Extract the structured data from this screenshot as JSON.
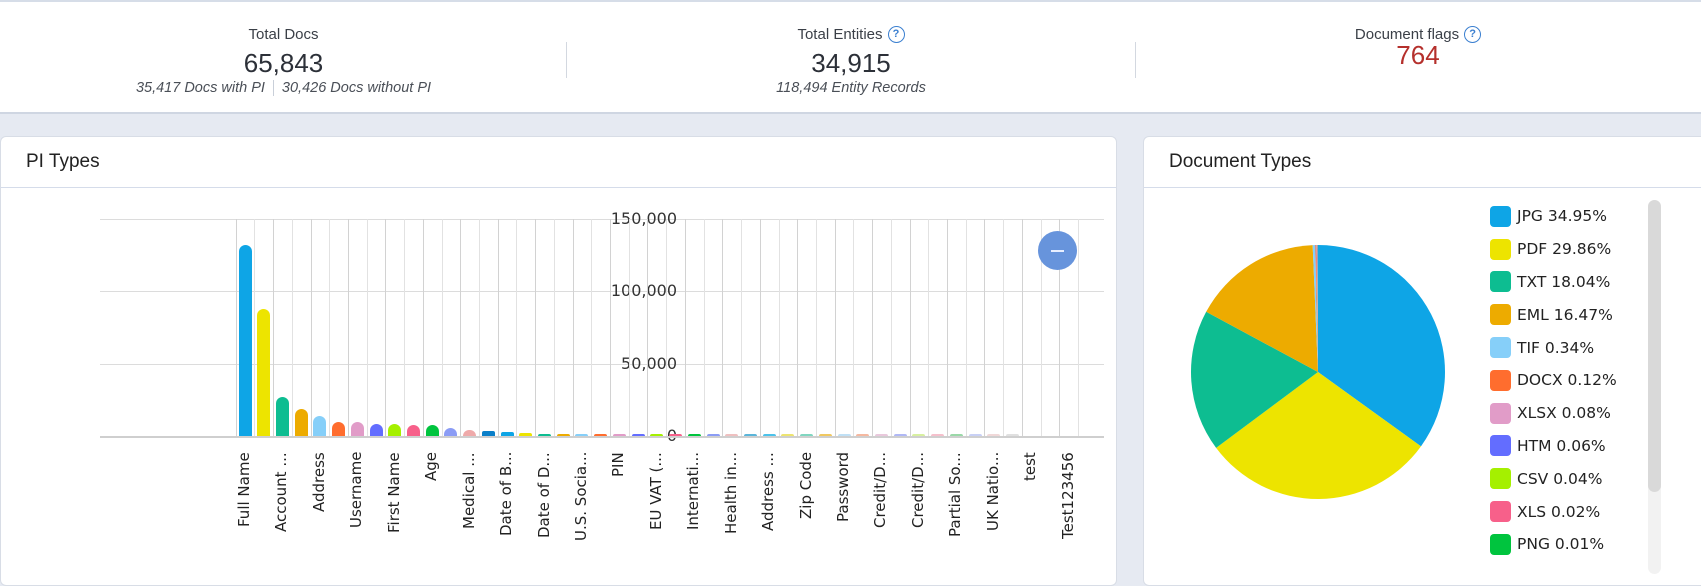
{
  "stats": {
    "total_docs": {
      "label": "Total Docs",
      "value": "65,843",
      "with_pi": "35,417 Docs with PI",
      "without_pi": "30,426 Docs without PI"
    },
    "total_entities": {
      "label": "Total Entities",
      "value": "34,915",
      "sub": "118,494 Entity Records",
      "help_icon": "?"
    },
    "document_flags": {
      "label": "Document flags",
      "value": "764",
      "help_icon": "?",
      "value_color": "#b5302c"
    }
  },
  "pi_types": {
    "title": "PI Types",
    "y_ticks": [
      "150,000",
      "100,000",
      "50,000",
      "0"
    ]
  },
  "document_types": {
    "title": "Document Types"
  },
  "chart_data": [
    {
      "type": "bar",
      "title": "PI Types",
      "xlabel": "",
      "ylabel": "",
      "ylim": [
        0,
        150000
      ],
      "grid": true,
      "categories": [
        "Full Name",
        "(unlabeled 2)",
        "Account ...",
        "(unlabeled 4)",
        "Address",
        "(unlabeled 6)",
        "Username",
        "(unlabeled 8)",
        "First Name",
        "(unlabeled 10)",
        "Age",
        "(unlabeled 12)",
        "Medical ...",
        "(unlabeled 14)",
        "Date of B...",
        "(unlabeled 16)",
        "Date of D...",
        "(unlabeled 18)",
        "U.S. Socia...",
        "(unlabeled 20)",
        "PIN",
        "(unlabeled 22)",
        "EU VAT (...",
        "(unlabeled 24)",
        "Internati...",
        "(unlabeled 26)",
        "Health in...",
        "(unlabeled 28)",
        "Address ...",
        "(unlabeled 30)",
        "Zip Code",
        "(unlabeled 32)",
        "Password",
        "(unlabeled 34)",
        "Credit/D...",
        "(unlabeled 36)",
        "Credit/D...",
        "(unlabeled 38)",
        "Partial So...",
        "(unlabeled 40)",
        "UK Natio...",
        "(unlabeled 42)",
        "test",
        "(unlabeled 44)",
        "Test123456"
      ],
      "visible_labels": [
        "Full Name",
        "Account ...",
        "Address",
        "Username",
        "First Name",
        "Age",
        "Medical ...",
        "Date of B...",
        "Date of D...",
        "U.S. Socia...",
        "PIN",
        "EU VAT (...",
        "Internati...",
        "Health in...",
        "Address ...",
        "Zip Code",
        "Password",
        "Credit/D...",
        "Credit/D...",
        "Partial So...",
        "UK Natio...",
        "test",
        "Test123456"
      ],
      "values": [
        132000,
        88000,
        27000,
        18500,
        13500,
        9800,
        9600,
        8400,
        8000,
        7800,
        7600,
        5200,
        4400,
        3300,
        2600,
        1900,
        1600,
        1200,
        1000,
        1000,
        800,
        800,
        800,
        700,
        700,
        600,
        600,
        500,
        500,
        500,
        400,
        400,
        300,
        300,
        300,
        200,
        200,
        200,
        150,
        150,
        100,
        100,
        0,
        0,
        0
      ],
      "colors": [
        "#0ea5e6",
        "#ede400",
        "#0dbd91",
        "#edab00",
        "#86cff9",
        "#ff6d2e",
        "#e19cc8",
        "#636dff",
        "#a5f000",
        "#f7608a",
        "#00c43e",
        "#8b9cf5",
        "#efaaaa",
        "#0a7fc9",
        "#0ea5e6",
        "#ede400",
        "#0dbd91",
        "#edab00",
        "#86cff9",
        "#ff6d2e",
        "#e19cc8",
        "#636dff",
        "#a5f000",
        "#f7608a",
        "#00c43e",
        "#8b9cf5",
        "#efc0c0",
        "#5bb5d9",
        "#4cc2ea",
        "#ede470",
        "#80d6c0",
        "#f0c860",
        "#c0e0f5",
        "#f5b8a0",
        "#e9c8dc",
        "#b0b8f5",
        "#d8f0a0",
        "#f5c0cc",
        "#9ad8a8",
        "#c8d0f5",
        "#f0d8d8",
        "#e0e0e0",
        "#eeeeee",
        "#eeeeee",
        "#eeeeee"
      ]
    },
    {
      "type": "pie",
      "title": "Document Types",
      "legend_position": "right",
      "labels": [
        "JPG",
        "PDF",
        "TXT",
        "EML",
        "TIF",
        "DOCX",
        "XLSX",
        "HTM",
        "CSV",
        "XLS",
        "PNG"
      ],
      "values": [
        34.95,
        29.86,
        18.04,
        16.47,
        0.34,
        0.12,
        0.08,
        0.06,
        0.04,
        0.02,
        0.01
      ],
      "legend": [
        "JPG 34.95%",
        "PDF 29.86%",
        "TXT 18.04%",
        "EML 16.47%",
        "TIF 0.34%",
        "DOCX 0.12%",
        "XLSX 0.08%",
        "HTM 0.06%",
        "CSV 0.04%",
        "XLS 0.02%",
        "PNG 0.01%"
      ],
      "colors": [
        "#0ea5e6",
        "#ede400",
        "#0dbd91",
        "#edab00",
        "#86cff9",
        "#ff6d2e",
        "#e19cc8",
        "#636dff",
        "#a5f000",
        "#f7608a",
        "#00c43e"
      ]
    }
  ]
}
